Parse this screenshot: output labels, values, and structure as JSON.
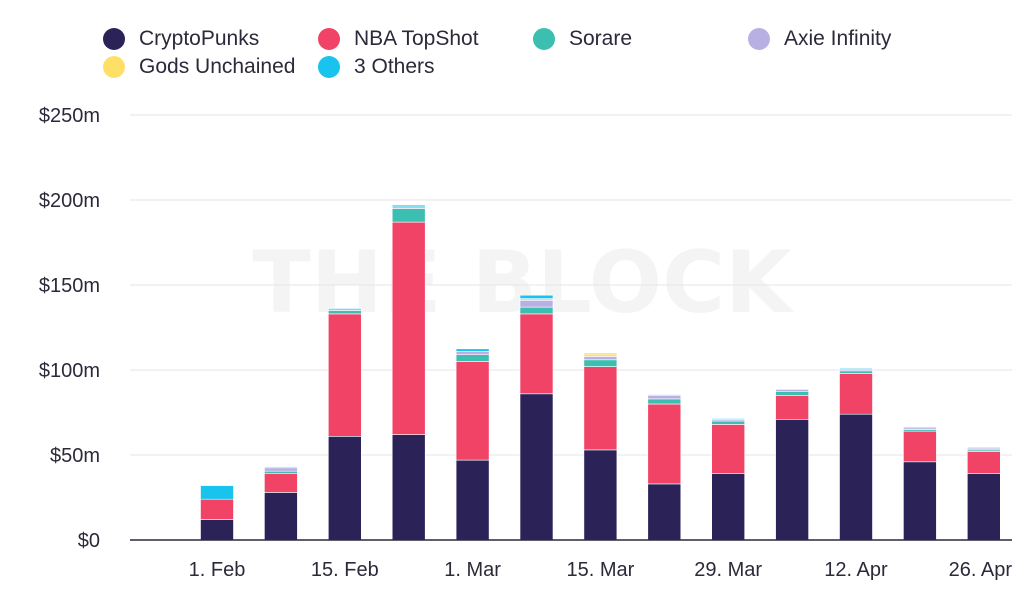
{
  "watermark": "THE BLOCK",
  "legend": [
    {
      "name": "CryptoPunks",
      "color": "#2b2258"
    },
    {
      "name": "NBA TopShot",
      "color": "#f04366"
    },
    {
      "name": "Sorare",
      "color": "#3cbfb1"
    },
    {
      "name": "Axie Infinity",
      "color": "#b8b0e3"
    },
    {
      "name": "Gods Unchained",
      "color": "#ffe066"
    },
    {
      "name": "3 Others",
      "color": "#18c3ee"
    }
  ],
  "chart_data": {
    "type": "bar",
    "stacked": true,
    "title": "",
    "xlabel": "",
    "ylabel": "",
    "ylim": [
      0,
      250
    ],
    "y_ticks": [
      "$0",
      "$50m",
      "$100m",
      "$150m",
      "$200m",
      "$250m"
    ],
    "x_tick_labels": [
      "1. Feb",
      "15. Feb",
      "1. Mar",
      "15. Mar",
      "29. Mar",
      "12. Apr",
      "26. Apr"
    ],
    "grid": true,
    "legend_position": "top",
    "categories": [
      "1. Feb",
      "8. Feb",
      "15. Feb",
      "22. Feb",
      "1. Mar",
      "8. Mar",
      "15. Mar",
      "22. Mar",
      "29. Mar",
      "5. Apr",
      "12. Apr",
      "19. Apr",
      "26. Apr"
    ],
    "series": [
      {
        "name": "CryptoPunks",
        "color": "#2b2258",
        "values": [
          12,
          28,
          61,
          62,
          47,
          86,
          53,
          33,
          39,
          71,
          74,
          46,
          39
        ]
      },
      {
        "name": "NBA TopShot",
        "color": "#f04366",
        "values": [
          12,
          11,
          72,
          125,
          58,
          47,
          49,
          47,
          29,
          14,
          24,
          18,
          13
        ]
      },
      {
        "name": "Sorare",
        "color": "#3cbfb1",
        "values": [
          0,
          1.5,
          2,
          8,
          4,
          4,
          4,
          3,
          2,
          2.5,
          1.5,
          1,
          1
        ]
      },
      {
        "name": "Axie Infinity",
        "color": "#b8b0e3",
        "values": [
          0,
          2,
          1,
          1,
          2,
          4,
          2,
          2,
          1,
          1,
          1,
          1,
          1
        ]
      },
      {
        "name": "Gods Unchained",
        "color": "#ffe066",
        "values": [
          0,
          0,
          0,
          0,
          0,
          1,
          1.5,
          0,
          0,
          0,
          0,
          0,
          0
        ]
      },
      {
        "name": "3 Others",
        "color": "#18c3ee",
        "values": [
          8,
          0.5,
          0.5,
          1,
          1.5,
          2,
          0.5,
          0.5,
          0.5,
          0.5,
          0.5,
          0.5,
          0.5
        ]
      }
    ]
  }
}
